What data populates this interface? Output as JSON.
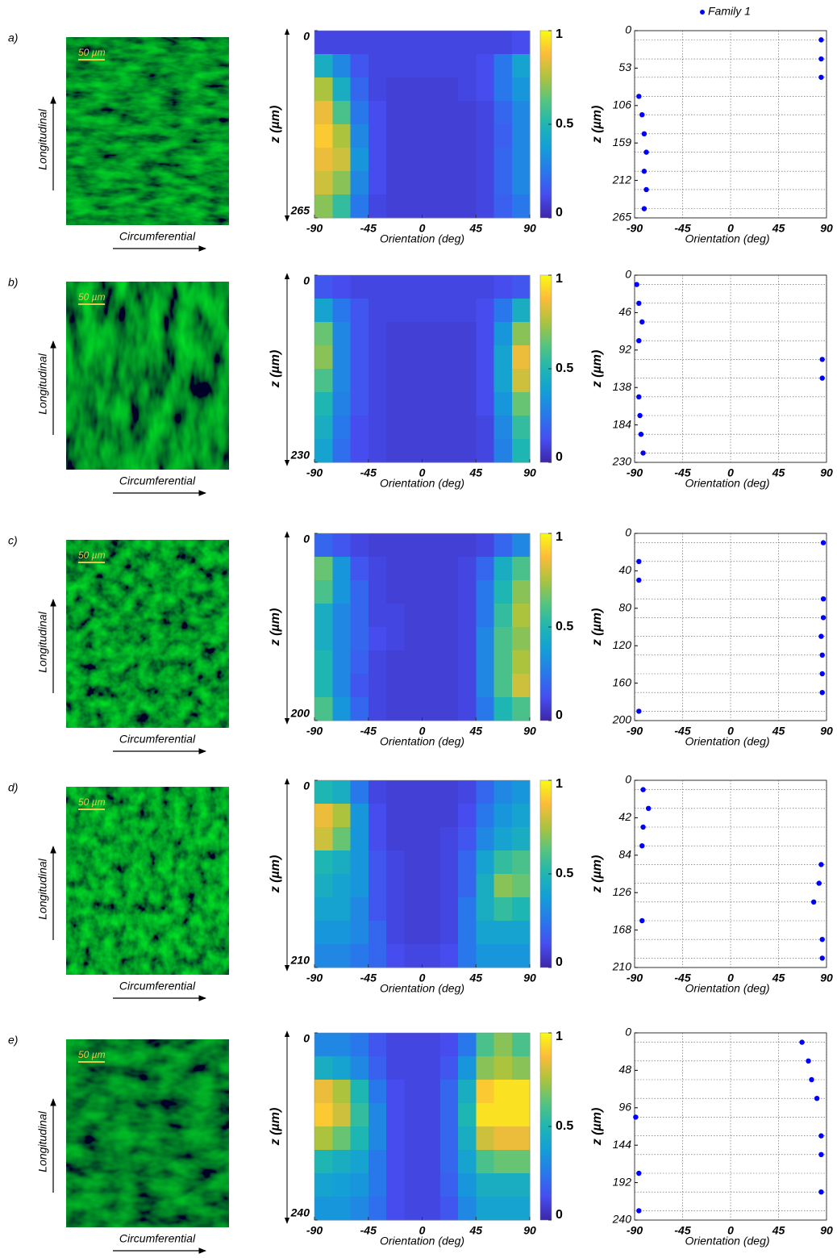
{
  "panels": [
    {
      "label": "a)",
      "image": {
        "scale_bar": "50 µm",
        "y_arrow_label": "Longitudinal",
        "x_arrow_label": "Circumferential"
      }
    },
    {
      "label": "b)",
      "image": {
        "scale_bar": "50 µm",
        "y_arrow_label": "Longitudinal",
        "x_arrow_label": "Circumferential"
      }
    },
    {
      "label": "c)",
      "image": {
        "scale_bar": "50 µm",
        "y_arrow_label": "Longitudinal",
        "x_arrow_label": "Circumferential"
      }
    },
    {
      "label": "d)",
      "image": {
        "scale_bar": "50 µm",
        "y_arrow_label": "Longitudinal",
        "x_arrow_label": "Circumferential"
      }
    },
    {
      "label": "e)",
      "image": {
        "scale_bar": "50 µm",
        "y_arrow_label": "Longitudinal",
        "x_arrow_label": "Circumferential"
      }
    }
  ],
  "chart_data": [
    {
      "type": "heatmap",
      "xlabel": "Orientation (deg)",
      "ylabel": "z (µm)",
      "xlim": [
        -90,
        90
      ],
      "xticks": [
        -90,
        -45,
        0,
        45,
        90
      ],
      "ylim": [
        0,
        265
      ],
      "yticks": [
        0,
        265
      ],
      "y_reversed": true,
      "colormap": "parula",
      "clim": [
        0,
        1
      ],
      "colorbar_ticks": [
        0,
        0.5,
        1
      ],
      "values": [
        [
          0.1,
          0.1,
          0.1,
          0.1,
          0.1,
          0.1,
          0.1,
          0.1,
          0.1,
          0.1,
          0.1,
          0.12
        ],
        [
          0.45,
          0.3,
          0.15,
          0.1,
          0.1,
          0.1,
          0.1,
          0.1,
          0.1,
          0.12,
          0.25,
          0.4
        ],
        [
          0.75,
          0.45,
          0.2,
          0.1,
          0.08,
          0.08,
          0.08,
          0.08,
          0.1,
          0.12,
          0.25,
          0.35
        ],
        [
          0.85,
          0.6,
          0.25,
          0.12,
          0.08,
          0.08,
          0.08,
          0.08,
          0.08,
          0.1,
          0.2,
          0.3
        ],
        [
          0.9,
          0.75,
          0.3,
          0.12,
          0.08,
          0.08,
          0.08,
          0.08,
          0.08,
          0.1,
          0.18,
          0.3
        ],
        [
          0.85,
          0.8,
          0.35,
          0.12,
          0.08,
          0.08,
          0.08,
          0.08,
          0.08,
          0.1,
          0.2,
          0.3
        ],
        [
          0.8,
          0.7,
          0.3,
          0.12,
          0.08,
          0.08,
          0.08,
          0.08,
          0.08,
          0.1,
          0.2,
          0.3
        ],
        [
          0.7,
          0.55,
          0.25,
          0.1,
          0.08,
          0.08,
          0.08,
          0.08,
          0.08,
          0.1,
          0.18,
          0.25
        ]
      ]
    },
    {
      "type": "scatter",
      "xlabel": "Orientation (deg)",
      "ylabel": "z (µm)",
      "xlim": [
        -90,
        90
      ],
      "xticks": [
        -90,
        -45,
        0,
        45,
        90
      ],
      "ylim": [
        0,
        265
      ],
      "yticks": [
        0,
        53,
        106,
        159,
        212,
        265
      ],
      "y_reversed": true,
      "grid": true,
      "legend": "top",
      "series": [
        {
          "name": "Family 1",
          "color": "#0000ff",
          "x": [
            85,
            85,
            85,
            -86,
            -83,
            -81,
            -79,
            -81,
            -79,
            -81
          ],
          "values": [
            13,
            40,
            66,
            93,
            119,
            146,
            172,
            199,
            225,
            252
          ]
        }
      ]
    },
    {
      "type": "heatmap",
      "xlabel": "Orientation (deg)",
      "ylabel": "z (µm)",
      "xlim": [
        -90,
        90
      ],
      "xticks": [
        -90,
        -45,
        0,
        45,
        90
      ],
      "ylim": [
        0,
        230
      ],
      "yticks": [
        0,
        230
      ],
      "y_reversed": true,
      "colormap": "parula",
      "clim": [
        0,
        1
      ],
      "colorbar_ticks": [
        0,
        0.5,
        1
      ],
      "values": [
        [
          0.15,
          0.12,
          0.1,
          0.1,
          0.1,
          0.1,
          0.1,
          0.1,
          0.1,
          0.1,
          0.12,
          0.15
        ],
        [
          0.4,
          0.25,
          0.15,
          0.1,
          0.1,
          0.1,
          0.1,
          0.1,
          0.1,
          0.12,
          0.25,
          0.45
        ],
        [
          0.65,
          0.3,
          0.15,
          0.1,
          0.08,
          0.08,
          0.08,
          0.08,
          0.08,
          0.12,
          0.35,
          0.7
        ],
        [
          0.7,
          0.3,
          0.15,
          0.1,
          0.08,
          0.08,
          0.08,
          0.08,
          0.08,
          0.12,
          0.4,
          0.85
        ],
        [
          0.6,
          0.3,
          0.15,
          0.1,
          0.08,
          0.08,
          0.08,
          0.08,
          0.08,
          0.12,
          0.4,
          0.8
        ],
        [
          0.5,
          0.28,
          0.15,
          0.1,
          0.08,
          0.08,
          0.08,
          0.08,
          0.08,
          0.12,
          0.35,
          0.65
        ],
        [
          0.45,
          0.25,
          0.12,
          0.1,
          0.08,
          0.08,
          0.08,
          0.08,
          0.08,
          0.1,
          0.3,
          0.55
        ],
        [
          0.4,
          0.22,
          0.12,
          0.1,
          0.08,
          0.08,
          0.08,
          0.08,
          0.08,
          0.1,
          0.28,
          0.5
        ]
      ]
    },
    {
      "type": "scatter",
      "xlabel": "Orientation (deg)",
      "ylabel": "z (µm)",
      "xlim": [
        -90,
        90
      ],
      "xticks": [
        -90,
        -45,
        0,
        45,
        90
      ],
      "ylim": [
        0,
        230
      ],
      "yticks": [
        0,
        46,
        92,
        138,
        184,
        230
      ],
      "y_reversed": true,
      "grid": true,
      "series": [
        {
          "color": "#0000ff",
          "x": [
            -88,
            -86,
            -83,
            -86,
            86,
            86,
            -86,
            -85,
            -84,
            -82
          ],
          "values": [
            11.5,
            34.5,
            57.5,
            80.5,
            103.5,
            126.5,
            149.5,
            172.5,
            195.5,
            218.5
          ]
        }
      ]
    },
    {
      "type": "heatmap",
      "xlabel": "Orientation (deg)",
      "ylabel": "z (µm)",
      "xlim": [
        -90,
        90
      ],
      "xticks": [
        -90,
        -45,
        0,
        45,
        90
      ],
      "ylim": [
        0,
        200
      ],
      "yticks": [
        0,
        200
      ],
      "y_reversed": true,
      "colormap": "parula",
      "clim": [
        0,
        1
      ],
      "colorbar_ticks": [
        0,
        0.5,
        1
      ],
      "values": [
        [
          0.2,
          0.15,
          0.1,
          0.08,
          0.08,
          0.08,
          0.08,
          0.08,
          0.08,
          0.1,
          0.2,
          0.3
        ],
        [
          0.65,
          0.35,
          0.15,
          0.1,
          0.08,
          0.08,
          0.08,
          0.08,
          0.1,
          0.2,
          0.45,
          0.6
        ],
        [
          0.6,
          0.35,
          0.2,
          0.1,
          0.08,
          0.08,
          0.08,
          0.08,
          0.1,
          0.25,
          0.5,
          0.7
        ],
        [
          0.45,
          0.3,
          0.2,
          0.1,
          0.1,
          0.08,
          0.08,
          0.08,
          0.1,
          0.25,
          0.55,
          0.75
        ],
        [
          0.45,
          0.3,
          0.2,
          0.12,
          0.1,
          0.08,
          0.08,
          0.08,
          0.1,
          0.3,
          0.6,
          0.7
        ],
        [
          0.5,
          0.3,
          0.18,
          0.1,
          0.08,
          0.08,
          0.08,
          0.08,
          0.1,
          0.3,
          0.6,
          0.75
        ],
        [
          0.5,
          0.3,
          0.15,
          0.1,
          0.08,
          0.08,
          0.08,
          0.08,
          0.1,
          0.3,
          0.6,
          0.8
        ],
        [
          0.6,
          0.35,
          0.2,
          0.1,
          0.08,
          0.08,
          0.08,
          0.08,
          0.1,
          0.25,
          0.5,
          0.6
        ]
      ]
    },
    {
      "type": "scatter",
      "xlabel": "Orientation (deg)",
      "ylabel": "z (µm)",
      "xlim": [
        -90,
        90
      ],
      "xticks": [
        -90,
        -45,
        0,
        45,
        90
      ],
      "ylim": [
        0,
        200
      ],
      "yticks": [
        0,
        40,
        80,
        120,
        160,
        200
      ],
      "y_reversed": true,
      "grid": true,
      "series": [
        {
          "color": "#0000ff",
          "x": [
            87,
            -86,
            -86,
            87,
            87,
            85,
            86,
            86,
            86,
            -86
          ],
          "values": [
            10,
            30,
            50,
            70,
            90,
            110,
            130,
            150,
            170,
            190
          ]
        }
      ]
    },
    {
      "type": "heatmap",
      "xlabel": "Orientation (deg)",
      "ylabel": "z (µm)",
      "xlim": [
        -90,
        90
      ],
      "xticks": [
        -90,
        -45,
        0,
        45,
        90
      ],
      "ylim": [
        0,
        210
      ],
      "yticks": [
        0,
        210
      ],
      "y_reversed": true,
      "colormap": "parula",
      "clim": [
        0,
        1
      ],
      "colorbar_ticks": [
        0,
        0.5,
        1
      ],
      "values": [
        [
          0.5,
          0.45,
          0.25,
          0.1,
          0.08,
          0.08,
          0.08,
          0.08,
          0.1,
          0.2,
          0.3,
          0.35
        ],
        [
          0.85,
          0.75,
          0.35,
          0.12,
          0.08,
          0.08,
          0.08,
          0.08,
          0.12,
          0.25,
          0.35,
          0.4
        ],
        [
          0.8,
          0.65,
          0.35,
          0.12,
          0.08,
          0.08,
          0.08,
          0.1,
          0.15,
          0.3,
          0.4,
          0.45
        ],
        [
          0.5,
          0.45,
          0.35,
          0.15,
          0.1,
          0.08,
          0.08,
          0.1,
          0.2,
          0.4,
          0.55,
          0.6
        ],
        [
          0.45,
          0.4,
          0.35,
          0.15,
          0.1,
          0.08,
          0.08,
          0.1,
          0.2,
          0.45,
          0.7,
          0.65
        ],
        [
          0.4,
          0.4,
          0.3,
          0.15,
          0.1,
          0.08,
          0.08,
          0.1,
          0.25,
          0.45,
          0.55,
          0.5
        ],
        [
          0.35,
          0.35,
          0.3,
          0.2,
          0.1,
          0.08,
          0.08,
          0.1,
          0.25,
          0.4,
          0.4,
          0.4
        ],
        [
          0.3,
          0.3,
          0.25,
          0.2,
          0.12,
          0.1,
          0.1,
          0.12,
          0.25,
          0.35,
          0.35,
          0.35
        ]
      ]
    },
    {
      "type": "scatter",
      "xlabel": "Orientation (deg)",
      "ylabel": "z (µm)",
      "xlim": [
        -90,
        90
      ],
      "xticks": [
        -90,
        -45,
        0,
        45,
        90
      ],
      "ylim": [
        0,
        210
      ],
      "yticks": [
        0,
        42,
        84,
        126,
        168,
        210
      ],
      "y_reversed": true,
      "grid": true,
      "series": [
        {
          "color": "#0000ff",
          "x": [
            -82,
            -77,
            -82,
            -83,
            85,
            83,
            78,
            -83,
            86,
            86
          ],
          "values": [
            10.5,
            31.5,
            52.5,
            73.5,
            94.5,
            115.5,
            136.5,
            157.5,
            178.5,
            199.5
          ]
        }
      ]
    },
    {
      "type": "heatmap",
      "xlabel": "Orientation (deg)",
      "ylabel": "z (µm)",
      "xlim": [
        -90,
        90
      ],
      "xticks": [
        -90,
        -45,
        0,
        45,
        90
      ],
      "ylim": [
        0,
        240
      ],
      "yticks": [
        0,
        240
      ],
      "y_reversed": true,
      "colormap": "parula",
      "clim": [
        0,
        1
      ],
      "colorbar_ticks": [
        0,
        0.5,
        1
      ],
      "values": [
        [
          0.3,
          0.3,
          0.25,
          0.15,
          0.1,
          0.1,
          0.1,
          0.12,
          0.25,
          0.6,
          0.7,
          0.6
        ],
        [
          0.45,
          0.4,
          0.3,
          0.18,
          0.1,
          0.1,
          0.1,
          0.15,
          0.35,
          0.7,
          0.75,
          0.7
        ],
        [
          0.85,
          0.75,
          0.5,
          0.25,
          0.12,
          0.1,
          0.1,
          0.2,
          0.45,
          0.9,
          0.95,
          0.95
        ],
        [
          0.9,
          0.8,
          0.55,
          0.3,
          0.12,
          0.1,
          0.1,
          0.2,
          0.5,
          0.95,
          0.95,
          0.95
        ],
        [
          0.75,
          0.65,
          0.5,
          0.3,
          0.12,
          0.1,
          0.1,
          0.2,
          0.45,
          0.8,
          0.85,
          0.85
        ],
        [
          0.5,
          0.45,
          0.4,
          0.25,
          0.12,
          0.1,
          0.1,
          0.2,
          0.4,
          0.6,
          0.65,
          0.65
        ],
        [
          0.4,
          0.38,
          0.35,
          0.25,
          0.12,
          0.1,
          0.1,
          0.18,
          0.35,
          0.45,
          0.45,
          0.45
        ],
        [
          0.35,
          0.35,
          0.3,
          0.22,
          0.12,
          0.1,
          0.1,
          0.15,
          0.3,
          0.4,
          0.4,
          0.4
        ]
      ]
    },
    {
      "type": "scatter",
      "xlabel": "Orientation (deg)",
      "ylabel": "z (µm)",
      "xlim": [
        -90,
        90
      ],
      "xticks": [
        -90,
        -45,
        0,
        45,
        90
      ],
      "ylim": [
        0,
        240
      ],
      "yticks": [
        0,
        48,
        96,
        144,
        192,
        240
      ],
      "y_reversed": true,
      "grid": true,
      "series": [
        {
          "color": "#0000ff",
          "x": [
            67,
            73,
            76,
            81,
            -89,
            85,
            85,
            -86,
            85,
            -86
          ],
          "values": [
            12,
            36,
            60,
            84,
            108,
            132,
            156,
            180,
            204,
            228
          ]
        }
      ]
    }
  ]
}
